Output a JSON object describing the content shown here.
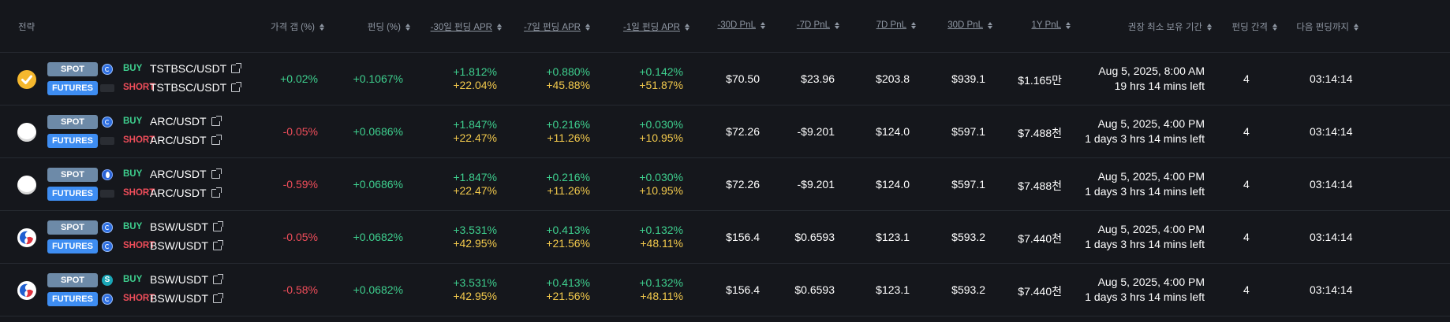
{
  "headers": {
    "strategy": "전략",
    "price_gap": "가격 갭 (%)",
    "funding": "펀딩 (%)",
    "apr30": "-30일 펀딩 APR",
    "apr7": "-7일 펀딩 APR",
    "apr1": "-1일 펀딩 APR",
    "pnl30m": "-30D PnL",
    "pnl7m": "-7D PnL",
    "pnl7": "7D PnL",
    "pnl30": "30D PnL",
    "pnl1y": "1Y PnL",
    "hold": "권장 최소 보유 기간",
    "interval": "펀딩 간격",
    "next": "다음 펀딩까지"
  },
  "labels": {
    "spot": "SPOT",
    "futures": "FUTURES",
    "buy": "BUY",
    "short": "SHORT"
  },
  "rows": [
    {
      "logo": "tstbsc-check-icon",
      "spot_exchange_icon": "exchange-circle-icon",
      "fut_exchange_icon": "exchange-text-icon",
      "spot_pair": "TSTBSC/USDT",
      "fut_pair": "TSTBSC/USDT",
      "price_gap": "+0.02%",
      "funding": "+0.1067%",
      "apr30_a": "+1.812%",
      "apr30_b": "+22.04%",
      "apr7_a": "+0.880%",
      "apr7_b": "+45.88%",
      "apr1_a": "+0.142%",
      "apr1_b": "+51.87%",
      "pnl30m": "$70.50",
      "pnl7m": "$23.96",
      "pnl7": "$203.8",
      "pnl30": "$939.1",
      "pnl1y": "$1.165만",
      "hold_date": "Aug 5, 2025, 8:00 AM",
      "hold_left": "19 hrs 14 mins left",
      "interval": "4",
      "next": "03:14:14"
    },
    {
      "logo": "arc-coin-icon",
      "spot_exchange_icon": "exchange-circle-icon",
      "fut_exchange_icon": "exchange-text-icon",
      "spot_pair": "ARC/USDT",
      "fut_pair": "ARC/USDT",
      "price_gap": "-0.05%",
      "funding": "+0.0686%",
      "apr30_a": "+1.847%",
      "apr30_b": "+22.47%",
      "apr7_a": "+0.216%",
      "apr7_b": "+11.26%",
      "apr1_a": "+0.030%",
      "apr1_b": "+10.95%",
      "pnl30m": "$72.26",
      "pnl7m": "-$9.201",
      "pnl7": "$124.0",
      "pnl30": "$597.1",
      "pnl1y": "$7.488천",
      "hold_date": "Aug 5, 2025, 4:00 PM",
      "hold_left": "1 days 3 hrs 14 mins left",
      "interval": "4",
      "next": "03:14:14"
    },
    {
      "logo": "arc-coin-icon",
      "spot_exchange_icon": "exchange-drop-icon",
      "fut_exchange_icon": "exchange-text-icon",
      "spot_pair": "ARC/USDT",
      "fut_pair": "ARC/USDT",
      "price_gap": "-0.59%",
      "funding": "+0.0686%",
      "apr30_a": "+1.847%",
      "apr30_b": "+22.47%",
      "apr7_a": "+0.216%",
      "apr7_b": "+11.26%",
      "apr1_a": "+0.030%",
      "apr1_b": "+10.95%",
      "pnl30m": "$72.26",
      "pnl7m": "-$9.201",
      "pnl7": "$124.0",
      "pnl30": "$597.1",
      "pnl1y": "$7.488천",
      "hold_date": "Aug 5, 2025, 4:00 PM",
      "hold_left": "1 days 3 hrs 14 mins left",
      "interval": "4",
      "next": "03:14:14"
    },
    {
      "logo": "bsw-coin-icon",
      "spot_exchange_icon": "exchange-circle-icon",
      "fut_exchange_icon": "exchange-circle-icon",
      "spot_pair": "BSW/USDT",
      "fut_pair": "BSW/USDT",
      "price_gap": "-0.05%",
      "funding": "+0.0682%",
      "apr30_a": "+3.531%",
      "apr30_b": "+42.95%",
      "apr7_a": "+0.413%",
      "apr7_b": "+21.56%",
      "apr1_a": "+0.132%",
      "apr1_b": "+48.11%",
      "pnl30m": "$156.4",
      "pnl7m": "$0.6593",
      "pnl7": "$123.1",
      "pnl30": "$593.2",
      "pnl1y": "$7.440천",
      "hold_date": "Aug 5, 2025, 4:00 PM",
      "hold_left": "1 days 3 hrs 14 mins left",
      "interval": "4",
      "next": "03:14:14"
    },
    {
      "logo": "bsw-coin-icon",
      "spot_exchange_icon": "exchange-s-icon",
      "fut_exchange_icon": "exchange-circle-icon",
      "spot_pair": "BSW/USDT",
      "fut_pair": "BSW/USDT",
      "price_gap": "-0.58%",
      "funding": "+0.0682%",
      "apr30_a": "+3.531%",
      "apr30_b": "+42.95%",
      "apr7_a": "+0.413%",
      "apr7_b": "+21.56%",
      "apr1_a": "+0.132%",
      "apr1_b": "+48.11%",
      "pnl30m": "$156.4",
      "pnl7m": "$0.6593",
      "pnl7": "$123.1",
      "pnl30": "$593.2",
      "pnl1y": "$7.440천",
      "hold_date": "Aug 5, 2025, 4:00 PM",
      "hold_left": "1 days 3 hrs 14 mins left",
      "interval": "4",
      "next": "03:14:14"
    }
  ]
}
